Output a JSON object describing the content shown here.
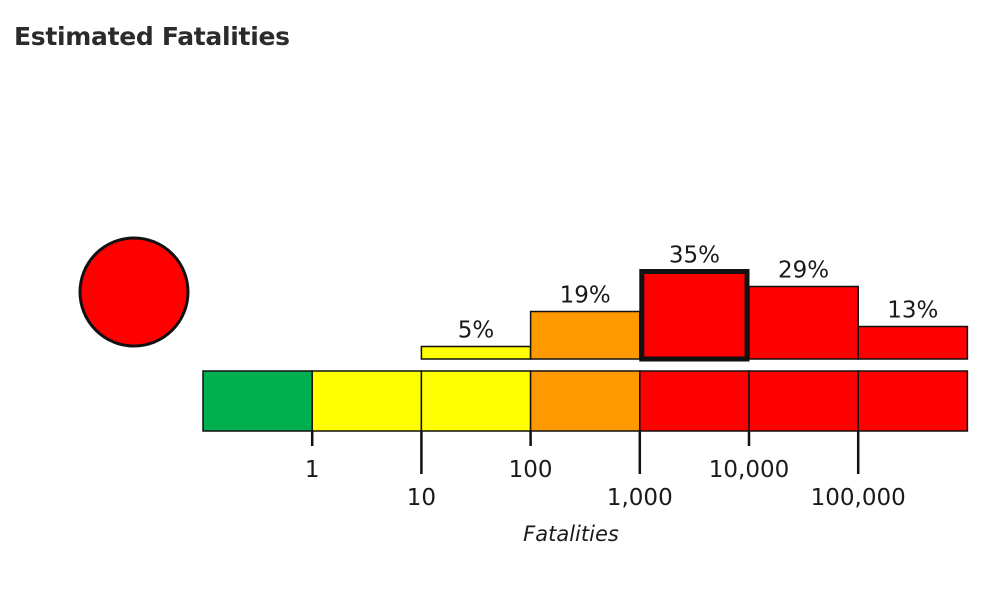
{
  "title": "Estimated Fatalities",
  "alert_color": "#ff0000",
  "chart_data": {
    "type": "bar",
    "title": "Estimated Fatalities",
    "xlabel": "Fatalities",
    "x_scale": "log",
    "bins": [
      {
        "from": 0,
        "to": 1,
        "probability": 0,
        "label": "",
        "color": "#00b050"
      },
      {
        "from": 1,
        "to": 10,
        "probability": 0,
        "label": "",
        "color": "#ffff00"
      },
      {
        "from": 10,
        "to": 100,
        "probability": 5,
        "label": "5%",
        "color": "#ffff00"
      },
      {
        "from": 100,
        "to": 1000,
        "probability": 19,
        "label": "19%",
        "color": "#ff9900"
      },
      {
        "from": 1000,
        "to": 10000,
        "probability": 35,
        "label": "35%",
        "color": "#ff0000",
        "highlighted": true
      },
      {
        "from": 10000,
        "to": 100000,
        "probability": 29,
        "label": "29%",
        "color": "#ff0000"
      },
      {
        "from": 100000,
        "to": null,
        "probability": 13,
        "label": "13%",
        "color": "#ff0000"
      }
    ],
    "ticks": [
      {
        "label": "1"
      },
      {
        "label": "10"
      },
      {
        "label": "100"
      },
      {
        "label": "1,000"
      },
      {
        "label": "10,000"
      },
      {
        "label": "100,000"
      }
    ]
  }
}
